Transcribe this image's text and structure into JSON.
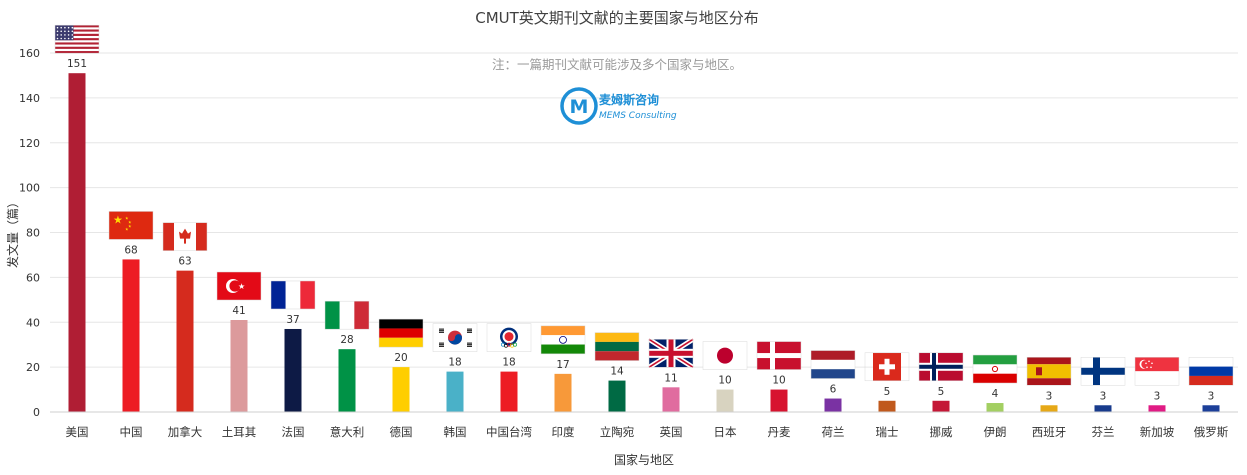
{
  "chart_data": {
    "type": "bar",
    "title": "CMUT英文期刊文献的主要国家与地区分布",
    "note": "注：一篇期刊文献可能涉及多个国家与地区。",
    "xlabel": "国家与地区",
    "ylabel": "发文量（篇）",
    "ylim": [
      0,
      160
    ],
    "yticks": [
      0,
      20,
      40,
      60,
      80,
      100,
      120,
      140,
      160
    ],
    "grid": true,
    "categories": [
      "美国",
      "中国",
      "加拿大",
      "土耳其",
      "法国",
      "意大利",
      "德国",
      "韩国",
      "中国台湾",
      "印度",
      "立陶宛",
      "英国",
      "日本",
      "丹麦",
      "荷兰",
      "瑞士",
      "挪威",
      "伊朗",
      "西班牙",
      "芬兰",
      "新加坡",
      "俄罗斯"
    ],
    "values": [
      151,
      68,
      63,
      41,
      37,
      28,
      20,
      18,
      18,
      17,
      14,
      11,
      10,
      10,
      6,
      5,
      5,
      4,
      3,
      3,
      3,
      3
    ],
    "colors": [
      "#b01e34",
      "#ed1c24",
      "#d52b1e",
      "#dc9a9c",
      "#0d1a45",
      "#009246",
      "#ffce00",
      "#4ab1c8",
      "#ed1c24",
      "#f7993a",
      "#006a44",
      "#e06c9f",
      "#d8d3c0",
      "#d7132f",
      "#7a32a3",
      "#c0591d",
      "#c41736",
      "#a3cf62",
      "#e6a817",
      "#183b8c",
      "#e01b84",
      "#1c3f99"
    ],
    "flags": [
      "us-flag",
      "china-flag",
      "canada-flag",
      "turkey-flag",
      "france-flag",
      "italy-flag",
      "germany-flag",
      "korea-flag",
      "chinese-taipei-olympic-flag",
      "india-flag",
      "lithuania-flag",
      "uk-flag",
      "japan-flag",
      "denmark-flag",
      "netherlands-flag",
      "switzerland-flag",
      "norway-flag",
      "iran-flag",
      "spain-flag",
      "finland-flag",
      "singapore-flag",
      "russia-flag"
    ]
  },
  "logo": {
    "icon": "mems-m-logo-icon",
    "cn": "麦姆斯咨询",
    "en": "MEMS Consulting"
  }
}
